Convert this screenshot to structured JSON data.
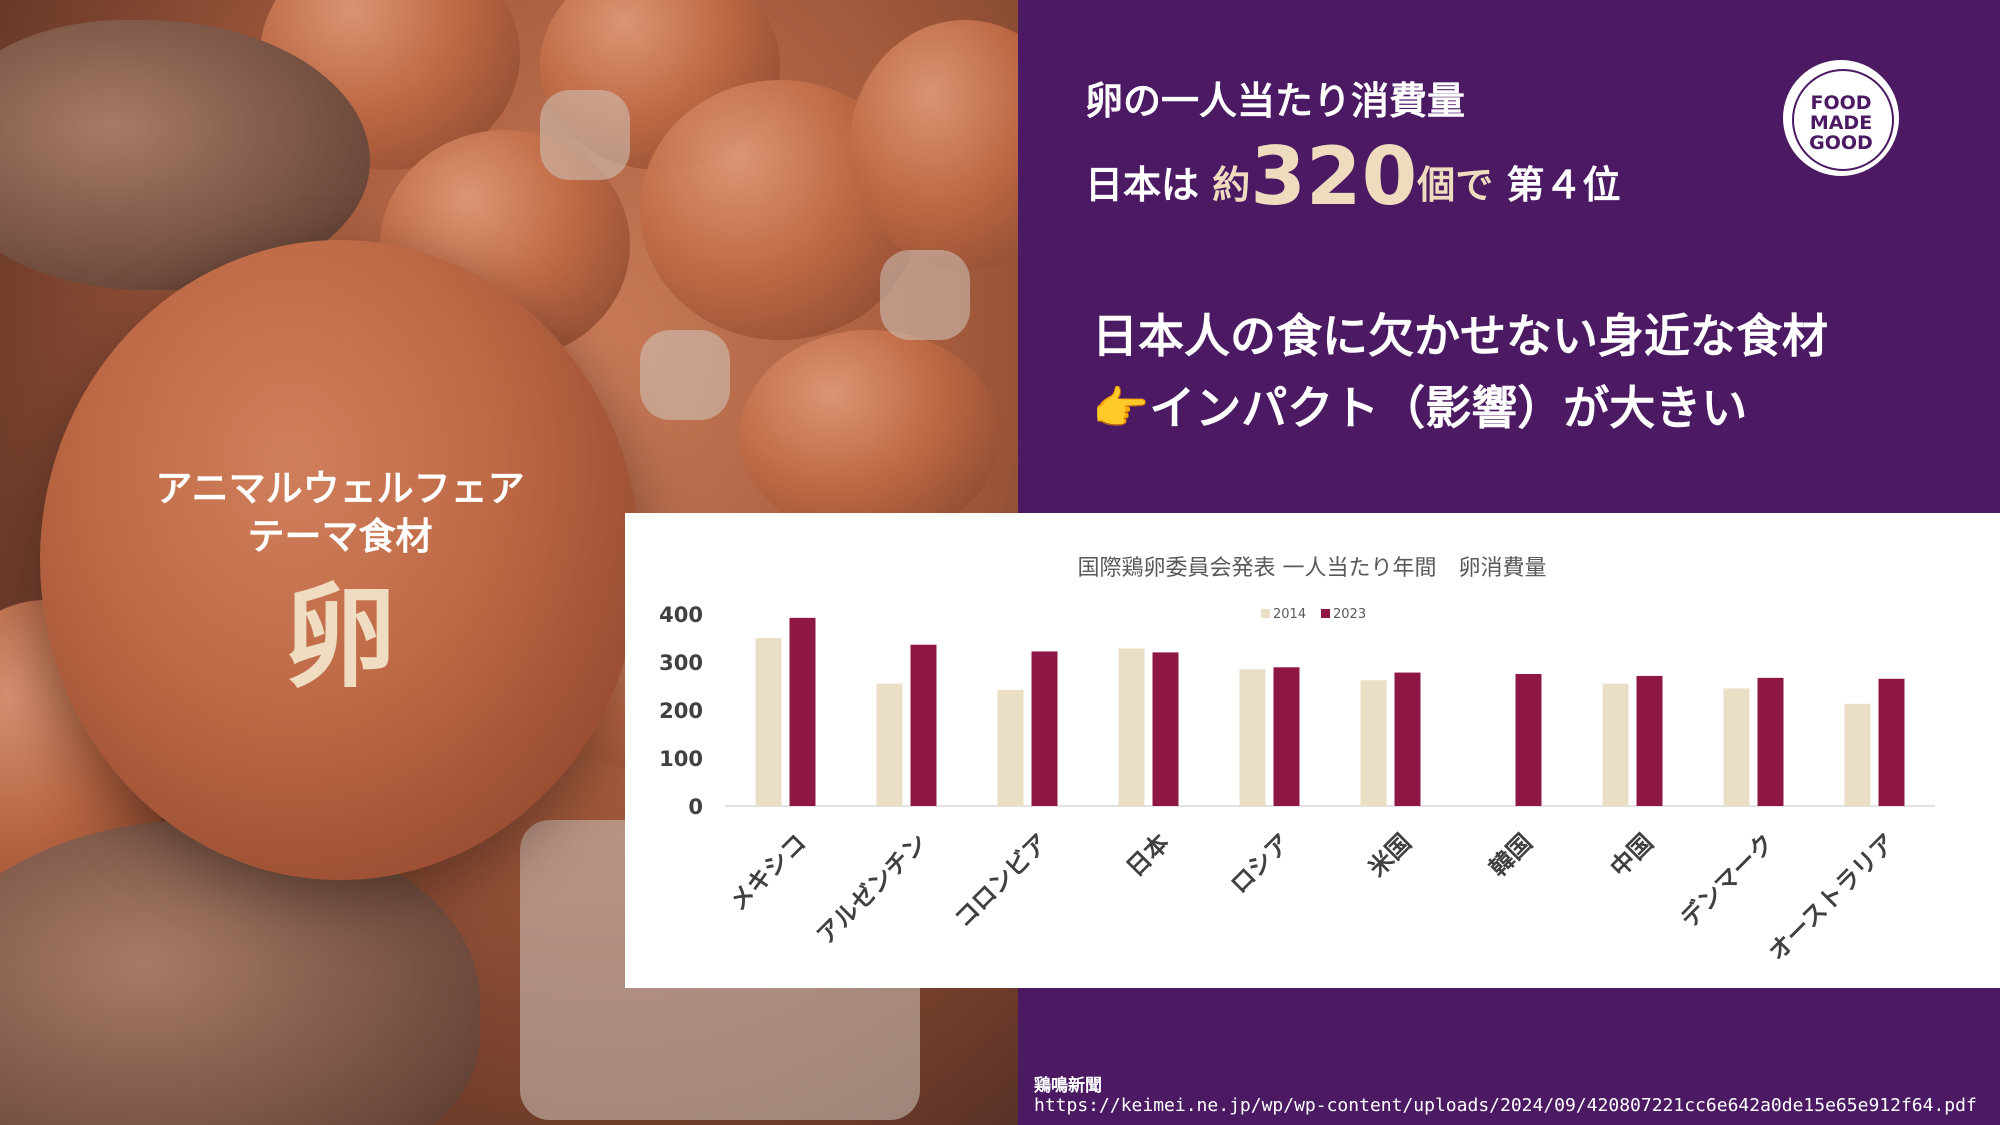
{
  "photo": {
    "tag_line1": "アニマルウェルフェア",
    "tag_line2": "テーマ食材",
    "food": "卵"
  },
  "headline": {
    "line1": "卵の一人当たり消費量",
    "country": "日本は",
    "approx": "約",
    "number": "320",
    "unit": "個で",
    "rank": "第４位"
  },
  "message": {
    "line1": "日本人の食に欠かせない身近な食材",
    "pointer": "👉",
    "line2": "インパクト（影響）が大きい"
  },
  "logo": {
    "line1": "FOOD",
    "line2": "MADE",
    "line3": "GOOD"
  },
  "chart_data": {
    "type": "bar",
    "title": "国際鶏卵委員会発表 一人当たり年間　卵消費量",
    "categories": [
      "メキシコ",
      "アルゼンチン",
      "コロンビア",
      "日本",
      "ロシア",
      "米国",
      "韓国",
      "中国",
      "デンマーク",
      "オーストラリア"
    ],
    "series": [
      {
        "name": "2014",
        "values": [
          350,
          255,
          242,
          328,
          285,
          262,
          null,
          255,
          245,
          213
        ]
      },
      {
        "name": "2023",
        "values": [
          392,
          336,
          322,
          320,
          289,
          278,
          275,
          271,
          267,
          265
        ]
      }
    ],
    "ylim": [
      0,
      400
    ],
    "yticks": [
      0,
      100,
      200,
      300,
      400
    ],
    "legend": "top-center",
    "grid": false,
    "colors": {
      "2014": "#eadfc4",
      "2023": "#8f1746"
    }
  },
  "source": {
    "name": "鶏鳴新聞",
    "url": "https://keimei.ne.jp/wp/wp-content/uploads/2024/09/420807221cc6e642a0de15e65e912f64.pdf"
  }
}
